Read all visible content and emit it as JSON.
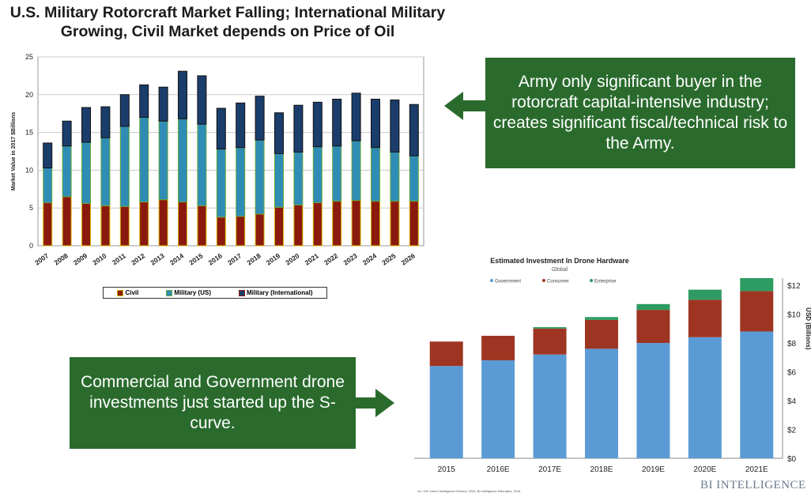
{
  "title": "U.S. Military Rotorcraft Market Falling; International Military Growing, Civil Market depends on Price of Oil",
  "callouts": {
    "army": "Army only significant buyer in the rotorcraft capital-intensive industry; creates significant fiscal/technical risk to the Army.",
    "drone": "Commercial and Government drone investments just started up the S-curve."
  },
  "colors": {
    "callout_bg": "#2a6b2d",
    "civil": "#8b1a0e",
    "military_us": "#2f8db5",
    "military_intl": "#1b3d6b",
    "government": "#5b9bd5",
    "consumer": "#9e3522",
    "enterprise": "#2e9b63"
  },
  "chart_data": [
    {
      "type": "bar",
      "stacked": true,
      "title": "",
      "xlabel": "",
      "ylabel": "Market Value in 2017 $Billions",
      "ylim": [
        0,
        25
      ],
      "yticks": [
        0,
        5,
        10,
        15,
        20,
        25
      ],
      "grid": true,
      "legend_position": "bottom",
      "categories": [
        "2007",
        "2008",
        "2009",
        "2010",
        "2011",
        "2012",
        "2013",
        "2014",
        "2015",
        "2016",
        "2017",
        "2018",
        "2019",
        "2020",
        "2021",
        "2022",
        "2023",
        "2024",
        "2025",
        "2026"
      ],
      "series": [
        {
          "name": "Civil",
          "values": [
            5.7,
            6.5,
            5.6,
            5.3,
            5.2,
            5.8,
            6.1,
            5.8,
            5.3,
            3.8,
            3.9,
            4.2,
            5.1,
            5.4,
            5.7,
            5.9,
            6.0,
            5.9,
            5.9,
            5.9
          ]
        },
        {
          "name": "Military (US)",
          "values": [
            4.6,
            6.7,
            8.1,
            9.0,
            10.6,
            11.2,
            10.4,
            11.0,
            10.8,
            9.0,
            9.1,
            9.8,
            7.1,
            7.0,
            7.4,
            7.3,
            7.9,
            7.1,
            6.5,
            6.0
          ]
        },
        {
          "name": "Military (International)",
          "values": [
            3.3,
            3.3,
            4.6,
            4.1,
            4.2,
            4.3,
            4.5,
            6.3,
            6.4,
            5.4,
            5.9,
            5.8,
            5.4,
            6.2,
            5.9,
            6.2,
            6.3,
            6.4,
            6.9,
            6.8
          ]
        }
      ]
    },
    {
      "type": "bar",
      "stacked": true,
      "title": "Estimated Investment In Drone Hardware",
      "subtitle": "Global",
      "xlabel": "",
      "ylabel": "USD (Billions)",
      "ylim": [
        0,
        12.5
      ],
      "yticks": [
        0,
        2,
        4,
        6,
        8,
        10,
        12
      ],
      "ytick_labels": [
        "$0",
        "$2",
        "$4",
        "$6",
        "$8",
        "$10",
        "$12"
      ],
      "legend_position": "top",
      "categories": [
        "2015",
        "2016E",
        "2017E",
        "2018E",
        "2019E",
        "2020E",
        "2021E"
      ],
      "series": [
        {
          "name": "Government",
          "values": [
            6.4,
            6.8,
            7.2,
            7.6,
            8.0,
            8.4,
            8.8
          ]
        },
        {
          "name": "Consumer",
          "values": [
            1.7,
            1.7,
            1.8,
            2.0,
            2.3,
            2.6,
            2.8
          ]
        },
        {
          "name": "Enterprise",
          "values": [
            0.0,
            0.0,
            0.1,
            0.2,
            0.4,
            0.7,
            0.9
          ]
        }
      ]
    }
  ],
  "source": "src: IHS Jane's Intelligence Review, 2015; BI Intelligence Estimates, 2016",
  "brand": "BI INTELLIGENCE"
}
